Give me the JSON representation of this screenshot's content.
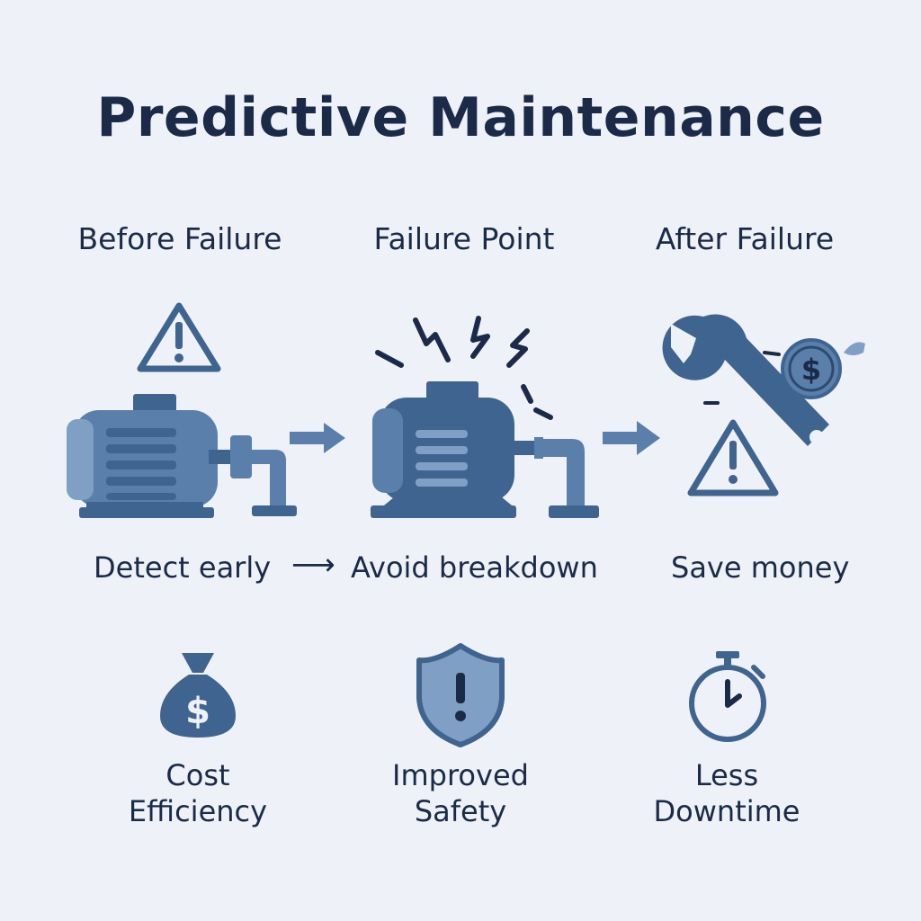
{
  "title": "Predictive Maintenance",
  "colors": {
    "background": "#eef2f8",
    "text": "#1b2a48",
    "icon_dark": "#3f648f",
    "icon_mid": "#5a7faa",
    "icon_light": "#7f9fc4"
  },
  "stages": [
    {
      "label": "Before Failure",
      "icon": "pump-with-warning-icon"
    },
    {
      "label": "Failure Point",
      "icon": "pump-with-sparks-icon"
    },
    {
      "label": "After Failure",
      "icon": "wrench-coin-warning-icon"
    }
  ],
  "captions": {
    "detect": "Detect early",
    "arrow": "⟶",
    "avoid": "Avoid breakdown",
    "save": "Save money"
  },
  "benefits": [
    {
      "line1": "Cost",
      "line2": "Efficiency",
      "icon": "money-bag-icon"
    },
    {
      "line1": "Improved",
      "line2": "Safety",
      "icon": "shield-icon"
    },
    {
      "line1": "Less",
      "line2": "Downtime",
      "icon": "stopwatch-icon"
    }
  ]
}
